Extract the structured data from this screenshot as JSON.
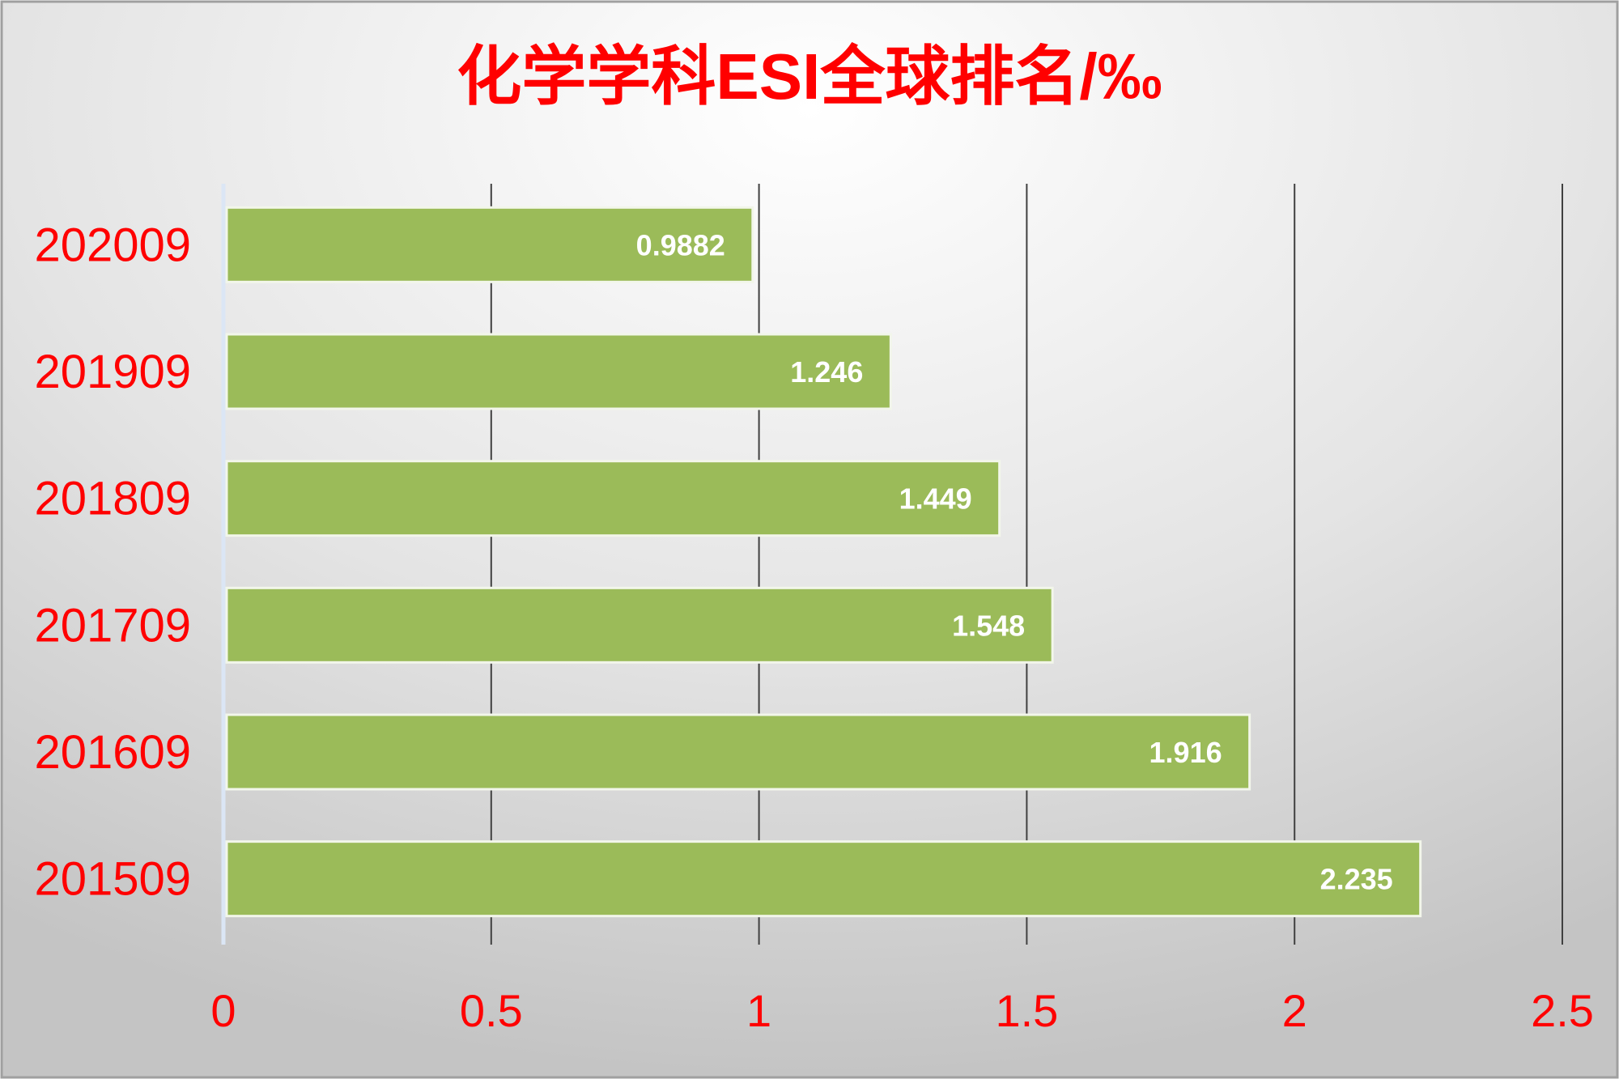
{
  "chart_data": {
    "type": "bar",
    "orientation": "horizontal",
    "title": "化学学科ESI全球排名/‰",
    "categories": [
      "202009",
      "201909",
      "201809",
      "201709",
      "201609",
      "201509"
    ],
    "values": [
      0.9882,
      1.246,
      1.449,
      1.548,
      1.916,
      2.235
    ],
    "data_labels": [
      "0.9882",
      "1.246",
      "1.449",
      "1.548",
      "1.916",
      "2.235"
    ],
    "xlim": [
      0,
      2.5
    ],
    "xticks": [
      0,
      0.5,
      1,
      1.5,
      2,
      2.5
    ],
    "xtick_labels": [
      "0",
      "0.5",
      "1",
      "1.5",
      "2",
      "2.5"
    ],
    "grid": "vertical",
    "legend": "none",
    "colors": {
      "bar": "#9bbb59",
      "text": "#ff0000",
      "data_label": "#ffffff",
      "grid": "#404040"
    }
  }
}
